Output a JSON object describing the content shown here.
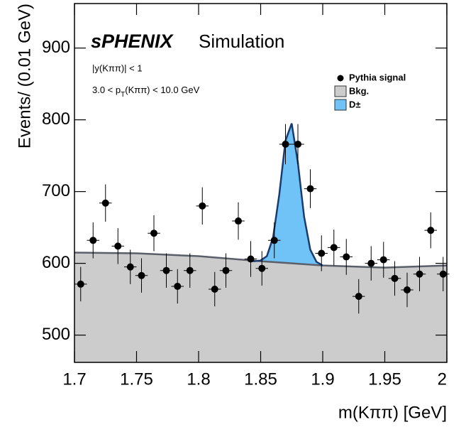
{
  "chart_data": {
    "type": "scatter",
    "experiment": "sPHENIX",
    "label": "Simulation",
    "cuts": [
      "|y(Kππ)| < 1",
      [
        "3.0 < p",
        "T",
        "(Kππ) < 10.0 GeV"
      ]
    ],
    "x_label": "m(Kππ) [GeV]",
    "y_label": "Events/ (0.01 GeV)",
    "xlim": [
      1.7,
      2.0
    ],
    "ylim": [
      462,
      962
    ],
    "xticks": [
      1.7,
      1.75,
      1.8,
      1.85,
      1.9,
      1.95,
      2
    ],
    "yticks": [
      500,
      600,
      700,
      800,
      900
    ],
    "legend": "upper right",
    "series": [
      {
        "name": "Pythia signal",
        "kind": "points",
        "color": "#000000",
        "xerr": 0.005,
        "x": [
          1.705,
          1.715,
          1.725,
          1.735,
          1.745,
          1.754,
          1.764,
          1.774,
          1.783,
          1.793,
          1.803,
          1.813,
          1.822,
          1.832,
          1.842,
          1.851,
          1.861,
          1.87,
          1.88,
          1.89,
          1.899,
          1.909,
          1.919,
          1.929,
          1.939,
          1.949,
          1.958,
          1.968,
          1.978,
          1.987,
          1.997
        ],
        "values": [
          571,
          632,
          684,
          624,
          595,
          583,
          642,
          590,
          568,
          590,
          680,
          564,
          590,
          659,
          606,
          593,
          632,
          766,
          766,
          704,
          614,
          622,
          609,
          554,
          600,
          605,
          579,
          563,
          585,
          646,
          585
        ],
        "errors": [
          24,
          25,
          26,
          25,
          24,
          24,
          25,
          24,
          24,
          24,
          26,
          24,
          24,
          26,
          25,
          24,
          25,
          28,
          28,
          27,
          25,
          25,
          25,
          24,
          24,
          25,
          24,
          24,
          24,
          25,
          24
        ]
      },
      {
        "name": "Bkg.",
        "kind": "area",
        "color": "#cccccc",
        "line": "#5a5f6a",
        "x": [
          1.7,
          1.75,
          1.8,
          1.85,
          1.9,
          1.95,
          2.0
        ],
        "values": [
          615,
          614,
          610,
          603,
          597,
          594,
          597
        ]
      },
      {
        "name": "D±",
        "kind": "area",
        "color": "#70c3f7",
        "line": "#1b3b6f",
        "x": [
          1.84,
          1.845,
          1.85,
          1.855,
          1.86,
          1.865,
          1.87,
          1.875,
          1.88,
          1.885,
          1.89,
          1.895,
          1.9
        ],
        "values": [
          604,
          603,
          604,
          610,
          636,
          696,
          771,
          795,
          740,
          665,
          619,
          602,
          597
        ]
      }
    ]
  }
}
